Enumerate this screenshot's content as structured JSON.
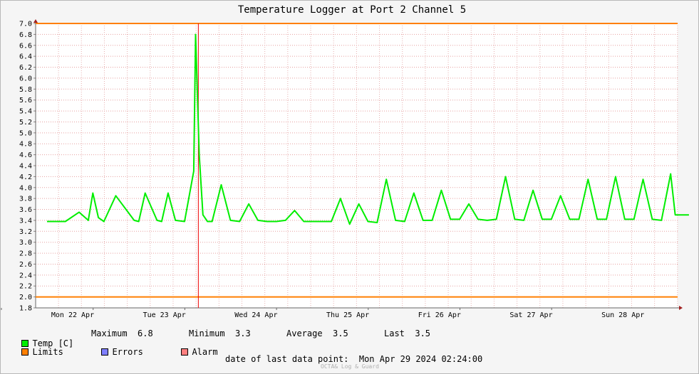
{
  "chart_data": {
    "type": "line",
    "title": "Temperature Logger at Port 2 Channel 5",
    "ylim": [
      1.8,
      7.0
    ],
    "y_ticks": [
      "7.0",
      "6.8",
      "6.6",
      "6.4",
      "6.2",
      "6.0",
      "5.8",
      "5.6",
      "5.4",
      "5.2",
      "5.0",
      "4.8",
      "4.6",
      "4.4",
      "4.2",
      "4.0",
      "3.8",
      "3.6",
      "3.4",
      "3.2",
      "3.0",
      "2.8",
      "2.6",
      "2.4",
      "2.2",
      "2.0",
      "1.8"
    ],
    "x_ticks": [
      "Mon 22 Apr",
      "Tue 23 Apr",
      "Wed 24 Apr",
      "Thu 25 Apr",
      "Fri 26 Apr",
      "Sat 27 Apr",
      "Sun 28 Apr"
    ],
    "series": [
      {
        "name": "Temp [C]",
        "color": "#00ee00",
        "x": [
          0,
          0.2,
          0.35,
          0.45,
          0.5,
          0.56,
          0.62,
          0.75,
          0.95,
          1.0,
          1.07,
          1.2,
          1.25,
          1.32,
          1.4,
          1.5,
          1.6,
          1.62,
          1.66,
          1.7,
          1.75,
          1.8,
          1.9,
          2.0,
          2.1,
          2.2,
          2.3,
          2.4,
          2.5,
          2.6,
          2.7,
          2.8,
          2.9,
          3.0,
          3.1,
          3.2,
          3.3,
          3.4,
          3.5,
          3.6,
          3.7,
          3.8,
          3.9,
          4.0,
          4.1,
          4.2,
          4.3,
          4.4,
          4.5,
          4.6,
          4.7,
          4.8,
          4.9,
          5.0,
          5.1,
          5.2,
          5.3,
          5.4,
          5.5,
          5.6,
          5.7,
          5.8,
          5.9,
          6.0,
          6.1,
          6.2,
          6.3,
          6.4,
          6.5,
          6.6,
          6.7,
          6.8,
          6.85,
          7.0
        ],
        "y": [
          3.38,
          3.38,
          3.55,
          3.4,
          3.9,
          3.45,
          3.38,
          3.85,
          3.4,
          3.38,
          3.9,
          3.4,
          3.38,
          3.9,
          3.4,
          3.38,
          4.3,
          6.8,
          4.6,
          3.5,
          3.38,
          3.38,
          4.05,
          3.4,
          3.38,
          3.7,
          3.4,
          3.38,
          3.38,
          3.4,
          3.58,
          3.38,
          3.38,
          3.38,
          3.38,
          3.8,
          3.33,
          3.7,
          3.38,
          3.36,
          4.15,
          3.4,
          3.38,
          3.9,
          3.4,
          3.4,
          3.95,
          3.42,
          3.42,
          3.7,
          3.42,
          3.4,
          3.42,
          4.2,
          3.42,
          3.4,
          3.95,
          3.42,
          3.42,
          3.85,
          3.42,
          3.42,
          4.15,
          3.42,
          3.42,
          4.2,
          3.42,
          3.42,
          4.15,
          3.42,
          3.4,
          4.25,
          3.5,
          3.5
        ]
      }
    ],
    "limits": {
      "name": "Limits",
      "color": "#ff7f00",
      "upper": 7.0,
      "lower": 2.0
    },
    "alarm_marker": {
      "x": 1.65,
      "color": "#ee0000"
    },
    "grid": true,
    "stats": [
      {
        "label": "Maximum",
        "value": "6.8"
      },
      {
        "label": "Minimum",
        "value": "3.3"
      },
      {
        "label": "Average",
        "value": "3.5"
      },
      {
        "label": "Last",
        "value": "3.5"
      }
    ],
    "legend": [
      {
        "name": "Temp [C]",
        "color": "#00ee00"
      },
      {
        "name": "Limits",
        "color": "#ff7f00"
      },
      {
        "name": "Errors",
        "color": "#7f7fff"
      },
      {
        "name": "Alarm",
        "color": "#ff7f7f"
      }
    ],
    "footer": {
      "label": "date of last data point:",
      "value": "Mon Apr 29 2024 02:24:00",
      "watermark": "OCTA& Log & Guard"
    }
  }
}
